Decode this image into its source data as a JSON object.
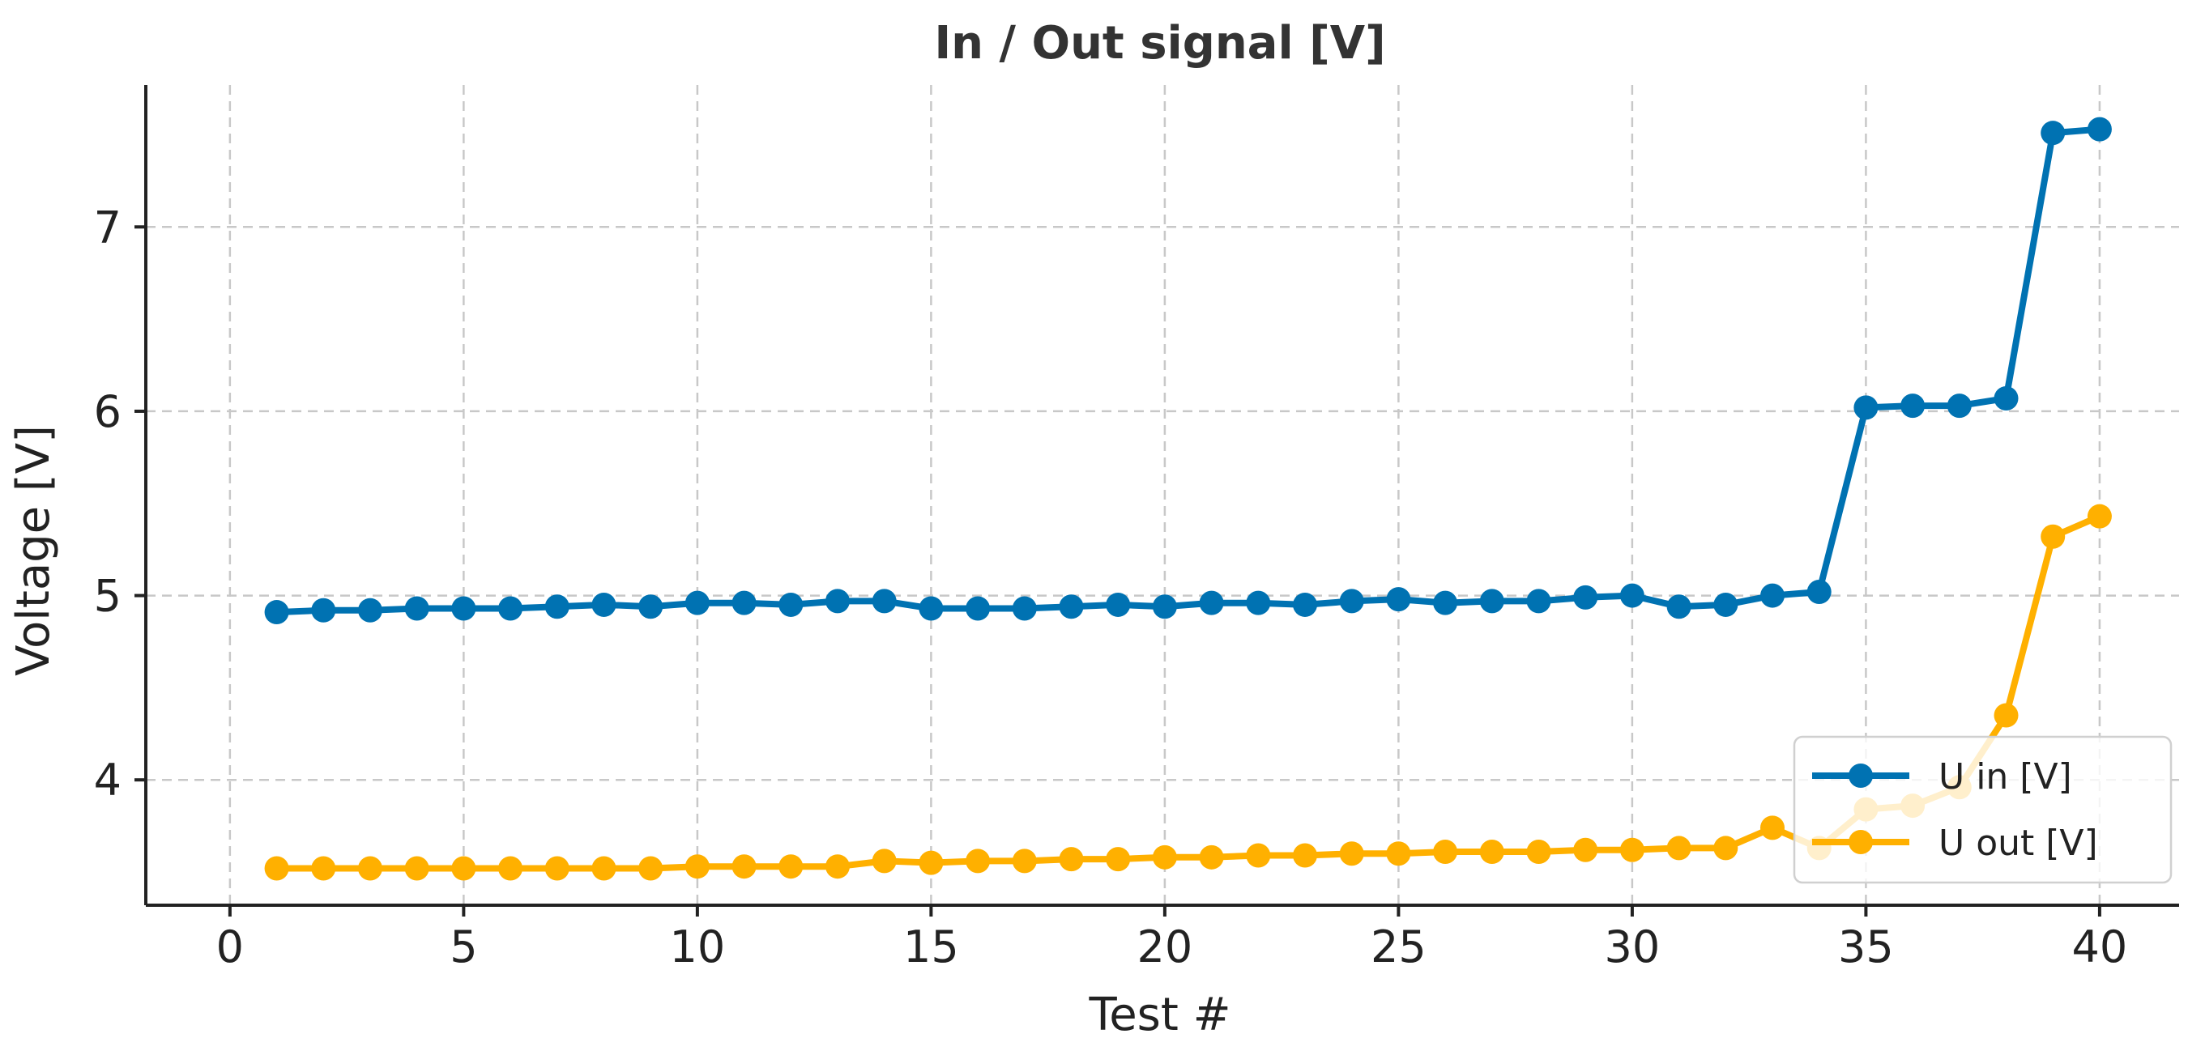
{
  "chart_data": {
    "type": "line",
    "title": "In / Out signal [V]",
    "xlabel": "Test #",
    "ylabel": "Voltage [V]",
    "xlim": [
      -1.8,
      41.7
    ],
    "ylim": [
      3.32,
      7.77
    ],
    "xticks": [
      0,
      5,
      10,
      15,
      20,
      25,
      30,
      35,
      40
    ],
    "yticks": [
      4,
      5,
      6,
      7
    ],
    "grid": true,
    "legend_position": "lower-right",
    "x": [
      1,
      2,
      3,
      4,
      5,
      6,
      7,
      8,
      9,
      10,
      11,
      12,
      13,
      14,
      15,
      16,
      17,
      18,
      19,
      20,
      21,
      22,
      23,
      24,
      25,
      26,
      27,
      28,
      29,
      30,
      31,
      32,
      33,
      34,
      35,
      36,
      37,
      38,
      39,
      40
    ],
    "series": [
      {
        "name": "U in [V]",
        "color": "#0072B2",
        "values": [
          4.91,
          4.92,
          4.92,
          4.93,
          4.93,
          4.93,
          4.94,
          4.95,
          4.94,
          4.96,
          4.96,
          4.95,
          4.97,
          4.97,
          4.93,
          4.93,
          4.93,
          4.94,
          4.95,
          4.94,
          4.96,
          4.96,
          4.95,
          4.97,
          4.98,
          4.96,
          4.97,
          4.97,
          4.99,
          5.0,
          4.94,
          4.95,
          5.0,
          5.02,
          6.02,
          6.03,
          6.03,
          6.07,
          7.51,
          7.53
        ]
      },
      {
        "name": "U out [V]",
        "color": "#FFB000",
        "values": [
          3.52,
          3.52,
          3.52,
          3.52,
          3.52,
          3.52,
          3.52,
          3.52,
          3.52,
          3.53,
          3.53,
          3.53,
          3.53,
          3.56,
          3.55,
          3.56,
          3.56,
          3.57,
          3.57,
          3.58,
          3.58,
          3.59,
          3.59,
          3.6,
          3.6,
          3.61,
          3.61,
          3.61,
          3.62,
          3.62,
          3.63,
          3.63,
          3.74,
          3.63,
          3.84,
          3.86,
          3.96,
          4.35,
          5.32,
          5.43
        ]
      }
    ]
  }
}
